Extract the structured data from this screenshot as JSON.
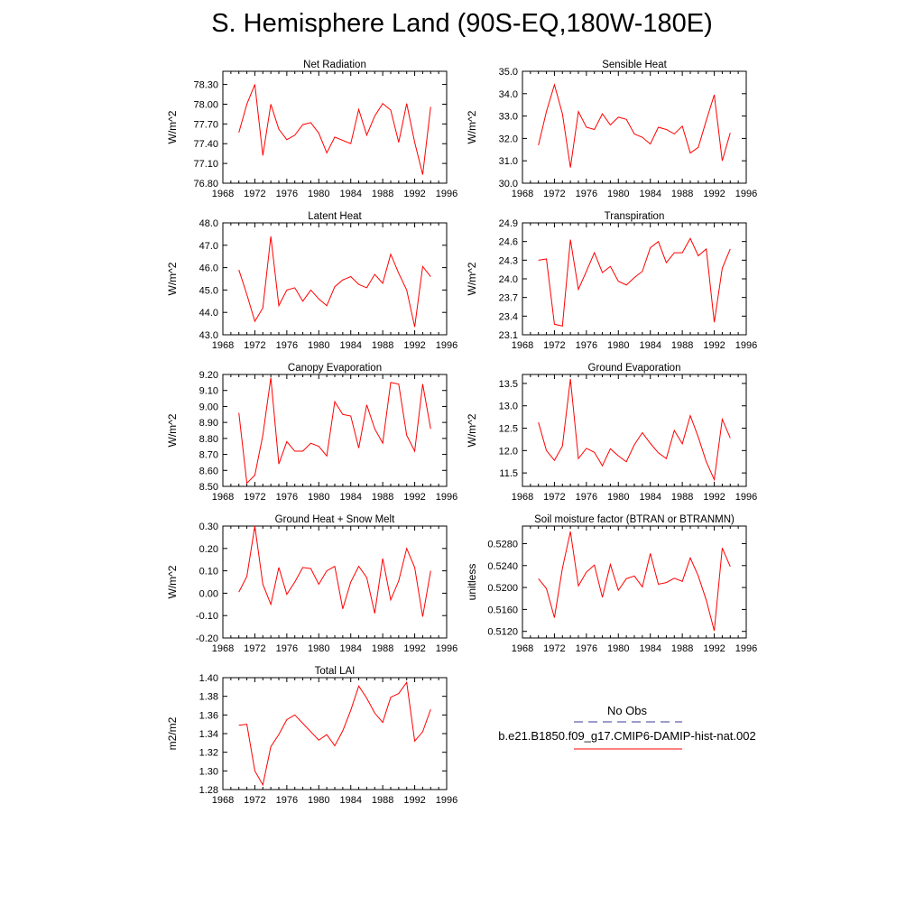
{
  "title": "S. Hemisphere Land (90S-EQ,180W-180E)",
  "chart_data": [
    {
      "type": "line",
      "title": "Net Radiation",
      "ylabel": "W/m^2",
      "xlim": [
        1968,
        1996
      ],
      "xticks": [
        1968,
        1972,
        1976,
        1980,
        1984,
        1988,
        1992,
        1996
      ],
      "ylim": [
        76.8,
        78.5
      ],
      "yticks": [
        "76.80",
        "77.10",
        "77.40",
        "77.70",
        "78.00",
        "78.30"
      ],
      "x": [
        1970,
        1971,
        1972,
        1973,
        1974,
        1975,
        1976,
        1977,
        1978,
        1979,
        1980,
        1981,
        1982,
        1983,
        1984,
        1985,
        1986,
        1987,
        1988,
        1989,
        1990,
        1991,
        1992,
        1993,
        1994
      ],
      "series": [
        {
          "color": "#ff0000",
          "values": [
            77.57,
            78.0,
            78.3,
            77.22,
            78.0,
            77.62,
            77.46,
            77.53,
            77.69,
            77.72,
            77.56,
            77.26,
            77.5,
            77.45,
            77.4,
            77.92,
            77.53,
            77.82,
            78.01,
            77.91,
            77.42,
            78.01,
            77.42,
            76.93,
            77.96
          ]
        }
      ]
    },
    {
      "type": "line",
      "title": "Sensible Heat",
      "ylabel": "W/m^2",
      "xlim": [
        1968,
        1996
      ],
      "xticks": [
        1968,
        1972,
        1976,
        1980,
        1984,
        1988,
        1992,
        1996
      ],
      "ylim": [
        30.0,
        35.0
      ],
      "yticks": [
        "30.0",
        "31.0",
        "32.0",
        "33.0",
        "34.0",
        "35.0"
      ],
      "x": [
        1970,
        1971,
        1972,
        1973,
        1974,
        1975,
        1976,
        1977,
        1978,
        1979,
        1980,
        1981,
        1982,
        1983,
        1984,
        1985,
        1986,
        1987,
        1988,
        1989,
        1990,
        1991,
        1992,
        1993,
        1994
      ],
      "series": [
        {
          "color": "#ff0000",
          "values": [
            31.7,
            33.2,
            34.4,
            33.1,
            30.7,
            33.2,
            32.5,
            32.4,
            33.1,
            32.6,
            32.95,
            32.85,
            32.2,
            32.05,
            31.75,
            32.5,
            32.4,
            32.2,
            32.55,
            31.35,
            31.6,
            32.8,
            33.95,
            31.0,
            32.25
          ]
        }
      ]
    },
    {
      "type": "line",
      "title": "Latent Heat",
      "ylabel": "W/m^2",
      "xlim": [
        1968,
        1996
      ],
      "xticks": [
        1968,
        1972,
        1976,
        1980,
        1984,
        1988,
        1992,
        1996
      ],
      "ylim": [
        43.0,
        48.0
      ],
      "yticks": [
        "43.0",
        "44.0",
        "45.0",
        "46.0",
        "47.0",
        "48.0"
      ],
      "x": [
        1970,
        1971,
        1972,
        1973,
        1974,
        1975,
        1976,
        1977,
        1978,
        1979,
        1980,
        1981,
        1982,
        1983,
        1984,
        1985,
        1986,
        1987,
        1988,
        1989,
        1990,
        1991,
        1992,
        1993,
        1994
      ],
      "series": [
        {
          "color": "#ff0000",
          "values": [
            45.9,
            44.8,
            43.6,
            44.2,
            47.4,
            44.3,
            45.0,
            45.1,
            44.5,
            45.0,
            44.6,
            44.3,
            45.15,
            45.45,
            45.6,
            45.25,
            45.1,
            45.7,
            45.3,
            46.6,
            45.75,
            45.0,
            43.35,
            46.05,
            45.6
          ]
        }
      ]
    },
    {
      "type": "line",
      "title": "Transpiration",
      "ylabel": "W/m^2",
      "xlim": [
        1968,
        1996
      ],
      "xticks": [
        1968,
        1972,
        1976,
        1980,
        1984,
        1988,
        1992,
        1996
      ],
      "ylim": [
        23.1,
        24.9
      ],
      "yticks": [
        "23.1",
        "23.4",
        "23.7",
        "24.0",
        "24.3",
        "24.6",
        "24.9"
      ],
      "x": [
        1970,
        1971,
        1972,
        1973,
        1974,
        1975,
        1976,
        1977,
        1978,
        1979,
        1980,
        1981,
        1982,
        1983,
        1984,
        1985,
        1986,
        1987,
        1988,
        1989,
        1990,
        1991,
        1992,
        1993,
        1994
      ],
      "series": [
        {
          "color": "#ff0000",
          "values": [
            24.3,
            24.32,
            23.27,
            23.24,
            24.63,
            23.83,
            24.12,
            24.42,
            24.1,
            24.2,
            23.96,
            23.9,
            24.02,
            24.12,
            24.5,
            24.6,
            24.26,
            24.42,
            24.42,
            24.65,
            24.37,
            24.48,
            23.3,
            24.17,
            24.48
          ]
        }
      ]
    },
    {
      "type": "line",
      "title": "Canopy Evaporation",
      "ylabel": "W/m^2",
      "xlim": [
        1968,
        1996
      ],
      "xticks": [
        1968,
        1972,
        1976,
        1980,
        1984,
        1988,
        1992,
        1996
      ],
      "ylim": [
        8.5,
        9.2
      ],
      "yticks": [
        "8.50",
        "8.60",
        "8.70",
        "8.80",
        "8.90",
        "9.00",
        "9.10",
        "9.20"
      ],
      "x": [
        1970,
        1971,
        1972,
        1973,
        1974,
        1975,
        1976,
        1977,
        1978,
        1979,
        1980,
        1981,
        1982,
        1983,
        1984,
        1985,
        1986,
        1987,
        1988,
        1989,
        1990,
        1991,
        1992,
        1993,
        1994
      ],
      "series": [
        {
          "color": "#ff0000",
          "values": [
            8.96,
            8.52,
            8.57,
            8.82,
            9.18,
            8.64,
            8.78,
            8.72,
            8.72,
            8.77,
            8.75,
            8.69,
            9.03,
            8.95,
            8.94,
            8.74,
            9.01,
            8.86,
            8.77,
            9.15,
            9.14,
            8.82,
            8.72,
            9.14,
            8.86
          ]
        }
      ]
    },
    {
      "type": "line",
      "title": "Ground Evaporation",
      "ylabel": "W/m^2",
      "xlim": [
        1968,
        1996
      ],
      "xticks": [
        1968,
        1972,
        1976,
        1980,
        1984,
        1988,
        1992,
        1996
      ],
      "ylim": [
        11.2,
        13.7
      ],
      "yticks": [
        "11.5",
        "12.0",
        "12.5",
        "13.0",
        "13.5"
      ],
      "x": [
        1970,
        1971,
        1972,
        1973,
        1974,
        1975,
        1976,
        1977,
        1978,
        1979,
        1980,
        1981,
        1982,
        1983,
        1984,
        1985,
        1986,
        1987,
        1988,
        1989,
        1990,
        1991,
        1992,
        1993,
        1994
      ],
      "series": [
        {
          "color": "#ff0000",
          "values": [
            12.63,
            12.0,
            11.78,
            12.1,
            13.6,
            11.82,
            12.05,
            11.96,
            11.66,
            12.04,
            11.88,
            11.75,
            12.13,
            12.4,
            12.16,
            11.95,
            11.82,
            12.45,
            12.15,
            12.78,
            12.3,
            11.75,
            11.35,
            12.7,
            12.28
          ]
        }
      ]
    },
    {
      "type": "line",
      "title": "Ground Heat + Snow Melt",
      "ylabel": "W/m^2",
      "xlim": [
        1968,
        1996
      ],
      "xticks": [
        1968,
        1972,
        1976,
        1980,
        1984,
        1988,
        1992,
        1996
      ],
      "ylim": [
        -0.2,
        0.3
      ],
      "yticks": [
        "-0.20",
        "-0.10",
        "0.00",
        "0.10",
        "0.20",
        "0.30"
      ],
      "x": [
        1970,
        1971,
        1972,
        1973,
        1974,
        1975,
        1976,
        1977,
        1978,
        1979,
        1980,
        1981,
        1982,
        1983,
        1984,
        1985,
        1986,
        1987,
        1988,
        1989,
        1990,
        1991,
        1992,
        1993,
        1994
      ],
      "series": [
        {
          "color": "#ff0000",
          "values": [
            0.005,
            0.075,
            0.3,
            0.04,
            -0.05,
            0.115,
            -0.005,
            0.05,
            0.115,
            0.11,
            0.04,
            0.1,
            0.12,
            -0.07,
            0.05,
            0.12,
            0.07,
            -0.09,
            0.155,
            -0.03,
            0.055,
            0.2,
            0.115,
            -0.105,
            0.1
          ]
        }
      ]
    },
    {
      "type": "line",
      "title": "Soil moisture factor (BTRAN or BTRANMN)",
      "ylabel": "unitless",
      "xlim": [
        1968,
        1996
      ],
      "xticks": [
        1968,
        1972,
        1976,
        1980,
        1984,
        1988,
        1992,
        1996
      ],
      "ylim": [
        0.5108,
        0.5312
      ],
      "yticks": [
        "0.5120",
        "0.5160",
        "0.5200",
        "0.5240",
        "0.5280"
      ],
      "x": [
        1970,
        1971,
        1972,
        1973,
        1974,
        1975,
        1976,
        1977,
        1978,
        1979,
        1980,
        1981,
        1982,
        1983,
        1984,
        1985,
        1986,
        1987,
        1988,
        1989,
        1990,
        1991,
        1992,
        1993,
        1994
      ],
      "series": [
        {
          "color": "#ff0000",
          "values": [
            0.5216,
            0.5198,
            0.5145,
            0.5235,
            0.5302,
            0.5203,
            0.5228,
            0.5241,
            0.5182,
            0.5242,
            0.5195,
            0.5216,
            0.5221,
            0.5201,
            0.5262,
            0.5206,
            0.5209,
            0.5217,
            0.5211,
            0.5254,
            0.5221,
            0.5177,
            0.5121,
            0.5272,
            0.5238
          ]
        }
      ]
    },
    {
      "type": "line",
      "title": "Total LAI",
      "ylabel": "m2/m2",
      "xlim": [
        1968,
        1996
      ],
      "xticks": [
        1968,
        1972,
        1976,
        1980,
        1984,
        1988,
        1992,
        1996
      ],
      "ylim": [
        1.28,
        1.4
      ],
      "yticks": [
        "1.28",
        "1.30",
        "1.32",
        "1.34",
        "1.36",
        "1.38",
        "1.40"
      ],
      "x": [
        1970,
        1971,
        1972,
        1973,
        1974,
        1975,
        1976,
        1977,
        1978,
        1979,
        1980,
        1981,
        1982,
        1983,
        1984,
        1985,
        1986,
        1987,
        1988,
        1989,
        1990,
        1991,
        1992,
        1993,
        1994
      ],
      "series": [
        {
          "color": "#ff0000",
          "values": [
            1.349,
            1.35,
            1.3,
            1.285,
            1.326,
            1.339,
            1.355,
            1.36,
            1.351,
            1.342,
            1.333,
            1.339,
            1.327,
            1.343,
            1.365,
            1.391,
            1.378,
            1.362,
            1.352,
            1.379,
            1.383,
            1.395,
            1.332,
            1.342,
            1.366
          ]
        }
      ]
    }
  ],
  "legend": {
    "entries": [
      {
        "label": "No Obs",
        "color": "#3a3a9a",
        "dash": true
      },
      {
        "label": "b.e21.B1850.f09_g17.CMIP6-DAMIP-hist-nat.002",
        "color": "#ff0000",
        "dash": false
      }
    ]
  }
}
